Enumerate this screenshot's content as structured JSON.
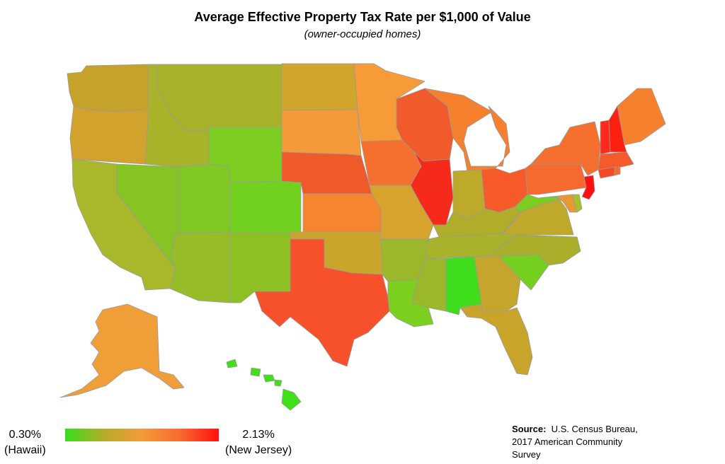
{
  "title": "Average Effective Property Tax Rate per $1,000 of Value",
  "subtitle": "(owner-occupied homes)",
  "legend": {
    "min_value": "0.30%",
    "min_label": "(Hawaii)",
    "max_value": "2.13%",
    "max_label": "(New Jersey)",
    "colors": [
      "#33e01a",
      "#b5ac28",
      "#f59a38",
      "#f76a2e",
      "#ff1010"
    ]
  },
  "source": {
    "label": "Source:",
    "text_line1": "U.S. Census Bureau,",
    "text_line2": "2017 American Community",
    "text_line3": "Survey"
  },
  "state_colors": {
    "WA": "#c5a22a",
    "OR": "#d2a32c",
    "CA": "#a9b82a",
    "NV": "#86c424",
    "ID": "#a8b32a",
    "MT": "#a8b12a",
    "WY": "#7ccd1f",
    "UT": "#80c822",
    "AZ": "#96bd27",
    "CO": "#72d01e",
    "NM": "#8ec024",
    "ND": "#cfa52c",
    "SD": "#f59a38",
    "NE": "#ef5a2a",
    "KS": "#f5852e",
    "OK": "#c9a52b",
    "TX": "#f6512a",
    "MN": "#f79a38",
    "IA": "#f5702e",
    "MO": "#d7a32d",
    "AR": "#9cb82a",
    "LA": "#7ccf1f",
    "WI": "#f15a2a",
    "IL": "#f62a1a",
    "IN": "#bdaa2a",
    "MI": "#f5802e",
    "OH": "#f65a28",
    "KY": "#b0ad2a",
    "TN": "#a8b22a",
    "MS": "#9ab82a",
    "AL": "#3fdd1c",
    "GA": "#c5a52b",
    "FL": "#c9a42b",
    "SC": "#74cf1f",
    "NC": "#aaae2a",
    "VA": "#bfa82a",
    "WV": "#7ccd20",
    "PA": "#f76a2e",
    "NY": "#f5702e",
    "VT": "#ff2a1a",
    "NH": "#ff2010",
    "ME": "#f5802e",
    "MA": "#f55a2a",
    "CT": "#f54a26",
    "RI": "#f56a2e",
    "NJ": "#ff1010",
    "DE": "#a8c02a",
    "MD": "#e59a34",
    "AK": "#f09f38",
    "HI": "#3fe01a"
  }
}
